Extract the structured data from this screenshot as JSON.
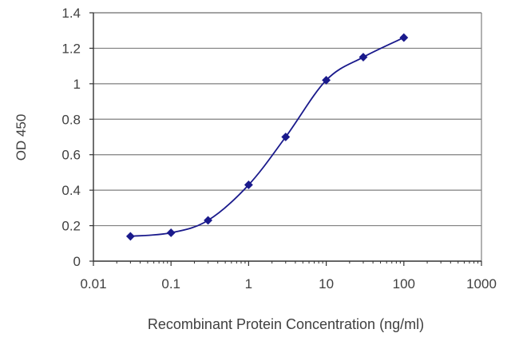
{
  "chart_data": {
    "type": "line",
    "title": "",
    "xlabel": "Recombinant Protein Concentration (ng/ml)",
    "ylabel": "OD 450",
    "x_scale": "log",
    "xlim": [
      0.01,
      1000
    ],
    "ylim": [
      0,
      1.4
    ],
    "x_ticks": [
      "0.01",
      "0.1",
      "1",
      "10",
      "100",
      "1000"
    ],
    "y_ticks": [
      "0",
      "0.2",
      "0.4",
      "0.6",
      "0.8",
      "1",
      "1.2",
      "1.4"
    ],
    "grid": "horizontal",
    "legend": "none",
    "series": [
      {
        "color": "#1a1a8c",
        "marker": "diamond",
        "x": [
          0.03,
          0.1,
          0.3,
          1,
          3,
          10,
          30,
          100
        ],
        "y": [
          0.14,
          0.16,
          0.23,
          0.43,
          0.7,
          1.02,
          1.15,
          1.26
        ]
      }
    ],
    "colors": {
      "grid": "#7f7f7f",
      "axis": "#333333",
      "series": "#1a1a8c",
      "text": "#404040"
    }
  }
}
